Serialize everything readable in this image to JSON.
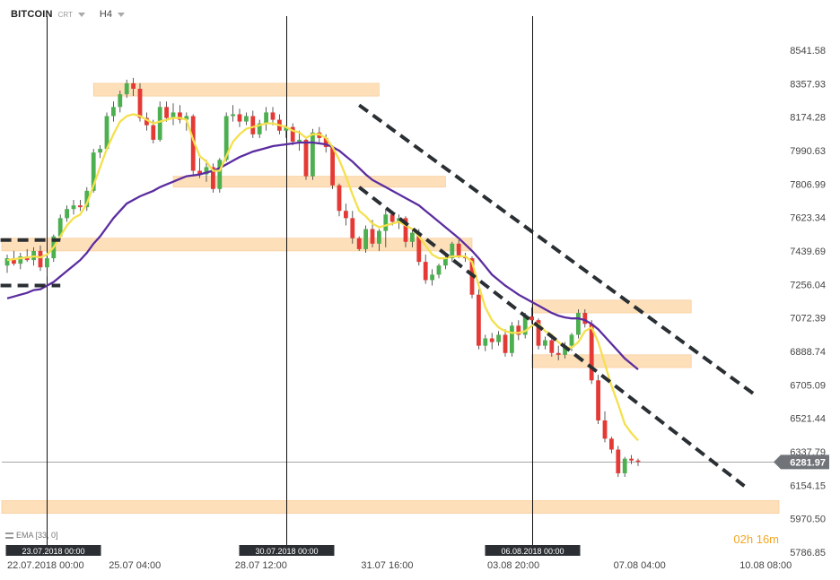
{
  "header": {
    "symbol": "BITCOIN",
    "sub": "CRT",
    "timeframe": "H4"
  },
  "indicator_label": "EMA [33, 0]",
  "timer": "02h 16m",
  "chart_data": {
    "type": "candlestick",
    "ylim": [
      5786.85,
      8630
    ],
    "y_ticks": [
      "8541.58",
      "8357.93",
      "8174.28",
      "7990.63",
      "7806.99",
      "7623.34",
      "7439.69",
      "7256.04",
      "7072.39",
      "6888.74",
      "6705.09",
      "6521.44",
      "6337.79",
      "6154.15",
      "5970.50",
      "5786.85"
    ],
    "x_labels": [
      {
        "i": 0,
        "label": "22.07.2018  00:00"
      },
      {
        "i": 18,
        "label": "25.07  04:00"
      },
      {
        "i": 37,
        "label": "28.07  12:00"
      },
      {
        "i": 56,
        "label": "31.07  16:00"
      },
      {
        "i": 75,
        "label": "03.08  20:00"
      },
      {
        "i": 94,
        "label": "07.08  04:00"
      },
      {
        "i": 113,
        "label": "10.08  08:00"
      }
    ],
    "crosshairs": [
      {
        "i": 6,
        "label": "23.07.2018 00:00"
      },
      {
        "i": 42,
        "label": "30.07.2018 00:00"
      },
      {
        "i": 79,
        "label": "06.08.2018 00:00"
      }
    ],
    "current_price": 6281.97,
    "bull_color": "#4caf50",
    "bear_color": "#e53935",
    "candles": [
      [
        7360,
        7420,
        7320,
        7400
      ],
      [
        7400,
        7440,
        7360,
        7370
      ],
      [
        7370,
        7430,
        7340,
        7410
      ],
      [
        7410,
        7450,
        7380,
        7390
      ],
      [
        7390,
        7460,
        7360,
        7440
      ],
      [
        7440,
        7470,
        7330,
        7350
      ],
      [
        7350,
        7420,
        7300,
        7400
      ],
      [
        7400,
        7530,
        7380,
        7520
      ],
      [
        7520,
        7640,
        7500,
        7620
      ],
      [
        7620,
        7690,
        7600,
        7670
      ],
      [
        7670,
        7720,
        7640,
        7690
      ],
      [
        7690,
        7720,
        7660,
        7680
      ],
      [
        7680,
        7790,
        7660,
        7770
      ],
      [
        7770,
        8000,
        7760,
        7980
      ],
      [
        7980,
        8020,
        7950,
        8000
      ],
      [
        8000,
        8200,
        7990,
        8180
      ],
      [
        8180,
        8260,
        8150,
        8230
      ],
      [
        8230,
        8320,
        8200,
        8300
      ],
      [
        8300,
        8380,
        8280,
        8360
      ],
      [
        8360,
        8390,
        8290,
        8330
      ],
      [
        8330,
        8360,
        8150,
        8170
      ],
      [
        8170,
        8200,
        8100,
        8130
      ],
      [
        8130,
        8160,
        8030,
        8050
      ],
      [
        8050,
        8260,
        8040,
        8230
      ],
      [
        8230,
        8260,
        8150,
        8170
      ],
      [
        8170,
        8250,
        8130,
        8200
      ],
      [
        8200,
        8240,
        8140,
        8160
      ],
      [
        8160,
        8200,
        8100,
        8180
      ],
      [
        8180,
        8190,
        7850,
        7880
      ],
      [
        7880,
        7950,
        7840,
        7860
      ],
      [
        7860,
        7940,
        7820,
        7900
      ],
      [
        7900,
        7920,
        7760,
        7780
      ],
      [
        7780,
        7950,
        7760,
        7940
      ],
      [
        7940,
        8200,
        7930,
        8180
      ],
      [
        8180,
        8240,
        8150,
        8190
      ],
      [
        8190,
        8220,
        8120,
        8150
      ],
      [
        8150,
        8200,
        8130,
        8180
      ],
      [
        8180,
        8210,
        8060,
        8080
      ],
      [
        8080,
        8160,
        8060,
        8140
      ],
      [
        8140,
        8230,
        8100,
        8200
      ],
      [
        8200,
        8230,
        8130,
        8160
      ],
      [
        8160,
        8190,
        8080,
        8100
      ],
      [
        8100,
        8130,
        8060,
        8120
      ],
      [
        8120,
        8140,
        8020,
        8040
      ],
      [
        8040,
        8100,
        7990,
        8050
      ],
      [
        8050,
        8060,
        7830,
        7850
      ],
      [
        7850,
        8110,
        7830,
        8090
      ],
      [
        8090,
        8120,
        8030,
        8060
      ],
      [
        8060,
        8080,
        7980,
        8010
      ],
      [
        8010,
        8020,
        7780,
        7800
      ],
      [
        7800,
        7810,
        7630,
        7660
      ],
      [
        7660,
        7700,
        7580,
        7620
      ],
      [
        7620,
        7660,
        7480,
        7510
      ],
      [
        7510,
        7520,
        7440,
        7450
      ],
      [
        7450,
        7580,
        7430,
        7560
      ],
      [
        7560,
        7610,
        7460,
        7480
      ],
      [
        7480,
        7560,
        7440,
        7550
      ],
      [
        7550,
        7670,
        7460,
        7640
      ],
      [
        7640,
        7660,
        7580,
        7600
      ],
      [
        7600,
        7640,
        7560,
        7620
      ],
      [
        7620,
        7630,
        7460,
        7490
      ],
      [
        7490,
        7560,
        7460,
        7540
      ],
      [
        7540,
        7560,
        7360,
        7380
      ],
      [
        7380,
        7420,
        7260,
        7280
      ],
      [
        7280,
        7340,
        7250,
        7310
      ],
      [
        7310,
        7370,
        7290,
        7360
      ],
      [
        7360,
        7420,
        7340,
        7400
      ],
      [
        7400,
        7490,
        7380,
        7480
      ],
      [
        7480,
        7500,
        7400,
        7410
      ],
      [
        7410,
        7430,
        7380,
        7400
      ],
      [
        7400,
        7410,
        7180,
        7200
      ],
      [
        7200,
        7230,
        6900,
        6920
      ],
      [
        6920,
        6980,
        6890,
        6960
      ],
      [
        6960,
        6990,
        6900,
        6940
      ],
      [
        6940,
        7000,
        6920,
        6980
      ],
      [
        6980,
        7010,
        6860,
        6880
      ],
      [
        6880,
        7050,
        6860,
        7030
      ],
      [
        7030,
        7060,
        6950,
        6980
      ],
      [
        6980,
        7100,
        6960,
        7080
      ],
      [
        7080,
        7130,
        7040,
        7060
      ],
      [
        7060,
        7070,
        6900,
        6920
      ],
      [
        6920,
        6970,
        6900,
        6950
      ],
      [
        6950,
        6970,
        6860,
        6880
      ],
      [
        6880,
        6920,
        6840,
        6870
      ],
      [
        6870,
        6940,
        6850,
        6920
      ],
      [
        6920,
        6990,
        6890,
        6980
      ],
      [
        6980,
        7120,
        6960,
        7100
      ],
      [
        7100,
        7120,
        7020,
        7040
      ],
      [
        7040,
        7060,
        6710,
        6730
      ],
      [
        6730,
        6760,
        6490,
        6510
      ],
      [
        6510,
        6560,
        6390,
        6410
      ],
      [
        6410,
        6420,
        6330,
        6350
      ],
      [
        6350,
        6370,
        6200,
        6220
      ],
      [
        6220,
        6310,
        6200,
        6300
      ],
      [
        6300,
        6320,
        6270,
        6290
      ],
      [
        6290,
        6300,
        6260,
        6282
      ]
    ],
    "ema_fast": [
      7390,
      7395,
      7400,
      7405,
      7410,
      7405,
      7420,
      7460,
      7520,
      7580,
      7620,
      7640,
      7700,
      7800,
      7900,
      8000,
      8080,
      8150,
      8180,
      8190,
      8180,
      8160,
      8140,
      8150,
      8160,
      8170,
      8170,
      8160,
      8050,
      7960,
      7930,
      7880,
      7880,
      7960,
      8040,
      8080,
      8110,
      8120,
      8130,
      8140,
      8140,
      8130,
      8120,
      8100,
      8090,
      8060,
      8080,
      8080,
      8060,
      8010,
      7940,
      7850,
      7750,
      7660,
      7630,
      7590,
      7570,
      7580,
      7590,
      7600,
      7580,
      7560,
      7520,
      7470,
      7420,
      7400,
      7400,
      7410,
      7410,
      7410,
      7380,
      7250,
      7130,
      7060,
      7020,
      7000,
      6990,
      6990,
      7000,
      7030,
      7040,
      7000,
      6980,
      6940,
      6910,
      6910,
      6940,
      7000,
      7020,
      6940,
      6820,
      6700,
      6600,
      6490,
      6440,
      6400
    ],
    "ema_slow": [
      7180,
      7190,
      7200,
      7210,
      7225,
      7230,
      7250,
      7270,
      7300,
      7330,
      7360,
      7390,
      7430,
      7480,
      7520,
      7570,
      7620,
      7660,
      7700,
      7720,
      7740,
      7755,
      7770,
      7790,
      7805,
      7820,
      7835,
      7850,
      7855,
      7860,
      7870,
      7880,
      7895,
      7915,
      7935,
      7955,
      7970,
      7985,
      7995,
      8005,
      8015,
      8020,
      8025,
      8030,
      8035,
      8035,
      8035,
      8030,
      8025,
      8010,
      7990,
      7960,
      7930,
      7895,
      7860,
      7830,
      7810,
      7790,
      7770,
      7750,
      7730,
      7710,
      7690,
      7660,
      7630,
      7600,
      7570,
      7540,
      7510,
      7475,
      7440,
      7400,
      7355,
      7310,
      7280,
      7250,
      7225,
      7200,
      7180,
      7160,
      7140,
      7120,
      7100,
      7085,
      7075,
      7070,
      7070,
      7060,
      7040,
      7010,
      6970,
      6930,
      6890,
      6850,
      6820,
      6790
    ],
    "zones": [
      {
        "from": 8290,
        "to": 8360,
        "i0": 13,
        "i1": 56
      },
      {
        "from": 7790,
        "to": 7850,
        "i0": 25,
        "i1": 66
      },
      {
        "from": 7440,
        "to": 7510,
        "i0": -1,
        "i1": 70
      },
      {
        "from": 7100,
        "to": 7170,
        "i0": 79,
        "i1": 103
      },
      {
        "from": 6800,
        "to": 6870,
        "i0": 79,
        "i1": 103
      },
      {
        "from": 6000,
        "to": 6070,
        "i0": -1,
        "i1": 135
      }
    ],
    "trend_lines": [
      {
        "i0": 53,
        "y0": 8240,
        "i1": 113,
        "y1": 6640
      },
      {
        "i0": 53,
        "y0": 7790,
        "i1": 111,
        "y1": 6150
      },
      {
        "i0": -1,
        "y0": 7500,
        "i1": 8,
        "y1": 7500
      },
      {
        "i0": -1,
        "y0": 7250,
        "i1": 8,
        "y1": 7250
      }
    ]
  }
}
